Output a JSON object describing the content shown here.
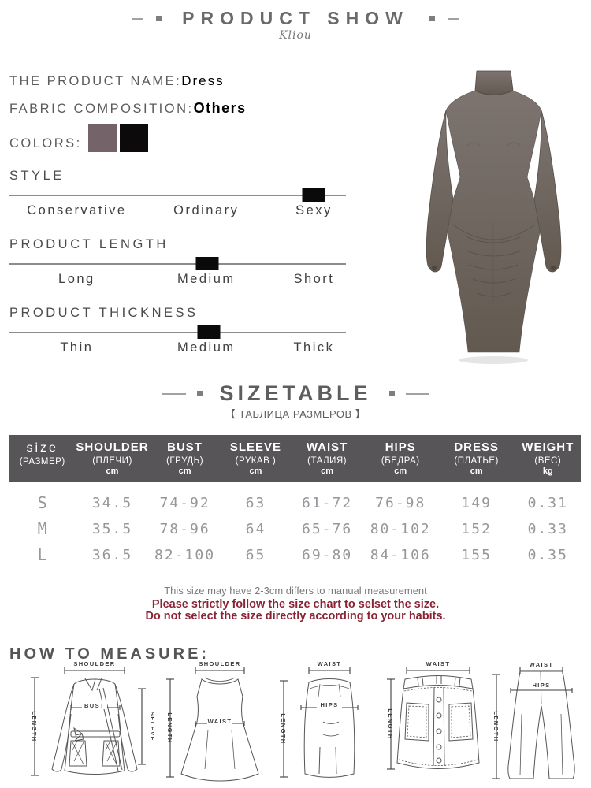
{
  "header": {
    "title": "PRODUCT SHOW",
    "brand": "Kliou"
  },
  "product": {
    "name_label": "THE PRODUCT NAME:",
    "name_value": "Dress",
    "fabric_label": "FABRIC COMPOSITION:",
    "fabric_value": "Others",
    "colors_label": "COLORS:",
    "swatches": [
      {
        "name": "mauve-taupe",
        "hex": "#746369"
      },
      {
        "name": "black",
        "hex": "#0c0a0b"
      }
    ]
  },
  "attributes": [
    {
      "title": "STYLE",
      "options": [
        "Conservative",
        "Ordinary",
        "Sexy"
      ],
      "selected": "Sexy",
      "marker_pos": "90.4%"
    },
    {
      "title": "PRODUCT LENGTH",
      "options": [
        "Long",
        "Medium",
        "Short"
      ],
      "selected": "Medium",
      "marker_pos": "58.8%"
    },
    {
      "title": "PRODUCT THICKNESS",
      "options": [
        "Thin",
        "Medium",
        "Thick"
      ],
      "selected": "Medium",
      "marker_pos": "59.2%"
    }
  ],
  "size_section": {
    "title": "SIZETABLE",
    "subtitle": "【 ТАБЛИЦА РАЗМЕРОВ 】"
  },
  "size_table": {
    "columns": [
      {
        "en": "size",
        "ru": "(РАЗМЕР)",
        "unit": ""
      },
      {
        "en": "SHOULDER",
        "ru": "(ПЛЕЧИ)",
        "unit": "cm"
      },
      {
        "en": "BUST",
        "ru": "(ГРУДЬ)",
        "unit": "cm"
      },
      {
        "en": "SLEEVE",
        "ru": "(РУКАВ )",
        "unit": "cm"
      },
      {
        "en": "WAIST",
        "ru": "(ТАЛИЯ)",
        "unit": "cm"
      },
      {
        "en": "HIPS",
        "ru": "(БЕДРА)",
        "unit": "cm"
      },
      {
        "en": "DRESS",
        "ru": "(ПЛАТЬЕ)",
        "unit": "cm"
      },
      {
        "en": "WEIGHT",
        "ru": "(ВЕС)",
        "unit": "kg"
      }
    ],
    "rows": [
      [
        "S",
        "34.5",
        "74-92",
        "63",
        "61-72",
        "76-98",
        "149",
        "0.31"
      ],
      [
        "M",
        "35.5",
        "78-96",
        "64",
        "65-76",
        "80-102",
        "152",
        "0.33"
      ],
      [
        "L",
        "36.5",
        "82-100",
        "65",
        "69-80",
        "84-106",
        "155",
        "0.35"
      ]
    ]
  },
  "notes": {
    "measure_note": "This size may have 2-3cm differs to manual measurement",
    "warning_1": "Please strictly follow the size chart to selset the size.",
    "warning_2": "Do not select the size directly according to your habits."
  },
  "measure": {
    "title": "HOW TO MEASURE:",
    "diagrams": [
      {
        "name": "jacket",
        "labels": {
          "top": "SHOULDER",
          "left": "LENGTH",
          "mid": "BUST",
          "right": "SELEVE"
        }
      },
      {
        "name": "dress",
        "labels": {
          "top": "SHOULDER",
          "left": "LENGTH",
          "mid": "WAIST"
        }
      },
      {
        "name": "pencil-skirt",
        "labels": {
          "top": "WAIST",
          "left": "LENGTH",
          "mid": "HIPS"
        }
      },
      {
        "name": "mini-skirt",
        "labels": {
          "top": "WAIST",
          "left": "LENGTH"
        }
      },
      {
        "name": "pants",
        "labels": {
          "top": "WAIST",
          "left": "LENGTH",
          "mid": "HIPS"
        }
      }
    ]
  },
  "photo": {
    "item": "gray ruched maxi dress",
    "top_hex": "#7d7470",
    "bottom_hex": "#625950"
  }
}
